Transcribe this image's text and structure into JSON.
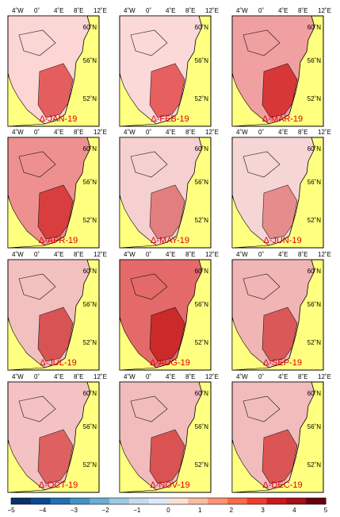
{
  "lon_labels": [
    "4˚W",
    "0˚",
    "4˚E",
    "8˚E",
    "12˚E"
  ],
  "lat_labels": [
    "60˚N",
    "56˚N",
    "52˚N"
  ],
  "panels": [
    {
      "label": "Δ-JAN-19"
    },
    {
      "label": "Δ-FEB-19"
    },
    {
      "label": "Δ-MAR-19"
    },
    {
      "label": "Δ-APR-19"
    },
    {
      "label": "Δ-MAY-19"
    },
    {
      "label": "Δ-JUN-19"
    },
    {
      "label": "Δ-JUL-19"
    },
    {
      "label": "Δ-AUG-19"
    },
    {
      "label": "Δ-SEP-19"
    },
    {
      "label": "Δ-OCT-19"
    },
    {
      "label": "Δ-NOV-19"
    },
    {
      "label": "Δ-DEC-19"
    }
  ],
  "colorbar": {
    "ticks": [
      "−5",
      "−4",
      "−3",
      "−2",
      "−1",
      "0",
      "1",
      "2",
      "3",
      "4",
      "5"
    ],
    "colors": [
      "#08306b",
      "#0b4a93",
      "#2171b5",
      "#4292c6",
      "#6baed6",
      "#9ecae1",
      "#c6dbef",
      "#deebf7",
      "#fee0d2",
      "#fcbba1",
      "#fc9272",
      "#fb6a4a",
      "#ef3b2c",
      "#cb181d",
      "#a50f15",
      "#67000d"
    ]
  },
  "colors": {
    "land": "#ffff80",
    "label": "#e00000"
  }
}
